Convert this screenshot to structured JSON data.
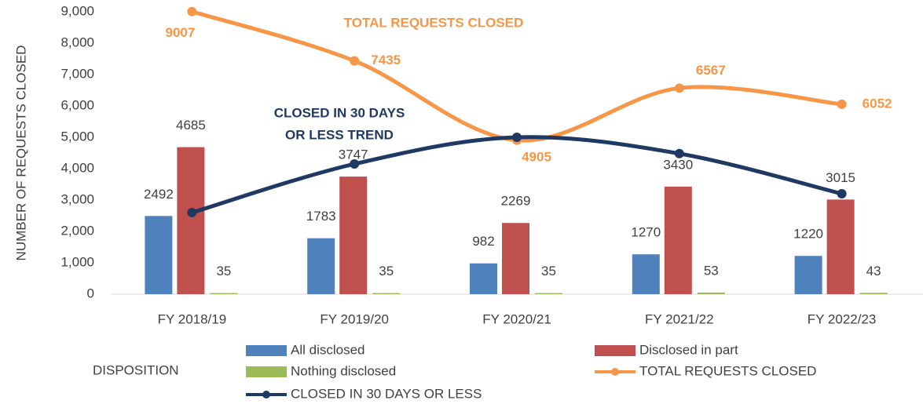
{
  "chart_data": {
    "type": "bar_line",
    "y_axis_label": "NUMBER OF REQUESTS CLOSED",
    "legend_title": "DISPOSITION",
    "annotations": [
      {
        "text": "TOTAL REQUESTS CLOSED",
        "color": "#f79646"
      },
      {
        "text": "CLOSED IN 30 DAYS",
        "color": "#1f3864"
      },
      {
        "text": "OR LESS TREND",
        "color": "#1f3864"
      }
    ],
    "categories": [
      "FY 2018/19",
      "FY 2019/20",
      "FY 2020/21",
      "FY 2021/22",
      "FY 2022/23"
    ],
    "series": [
      {
        "name": "All disclosed",
        "kind": "bar",
        "color": "#4f81bd",
        "values": [
          2492,
          1783,
          982,
          1270,
          1220
        ]
      },
      {
        "name": "Disclosed in part",
        "kind": "bar",
        "color": "#c0504d",
        "values": [
          4685,
          3747,
          2269,
          3430,
          3015
        ]
      },
      {
        "name": "Nothing disclosed",
        "kind": "bar",
        "color": "#9bbb59",
        "values": [
          35,
          35,
          35,
          53,
          43
        ]
      },
      {
        "name": "TOTAL REQUESTS CLOSED",
        "kind": "line",
        "color": "#f79646",
        "values": [
          9007,
          7435,
          4905,
          6567,
          6052
        ],
        "labels": true
      },
      {
        "name": "CLOSED IN 30 DAYS OR LESS",
        "kind": "line",
        "color": "#1f3864",
        "values": [
          2600,
          4150,
          5000,
          4480,
          3200
        ],
        "labels": false
      }
    ],
    "ylim": [
      0,
      9000
    ],
    "yticks": [
      0,
      {
        "value": 1000,
        "label": "1,000"
      },
      {
        "value": 2000,
        "label": "2,000"
      },
      {
        "value": 3000,
        "label": "3,000"
      },
      {
        "value": 4000,
        "label": "4,000"
      },
      {
        "value": 5000,
        "label": "5,000"
      },
      {
        "value": 6000,
        "label": "6,000"
      },
      {
        "value": 7000,
        "label": "7,000"
      },
      {
        "value": 8000,
        "label": "8,000"
      },
      {
        "value": 9000,
        "label": "9,000"
      }
    ],
    "grid": false
  }
}
